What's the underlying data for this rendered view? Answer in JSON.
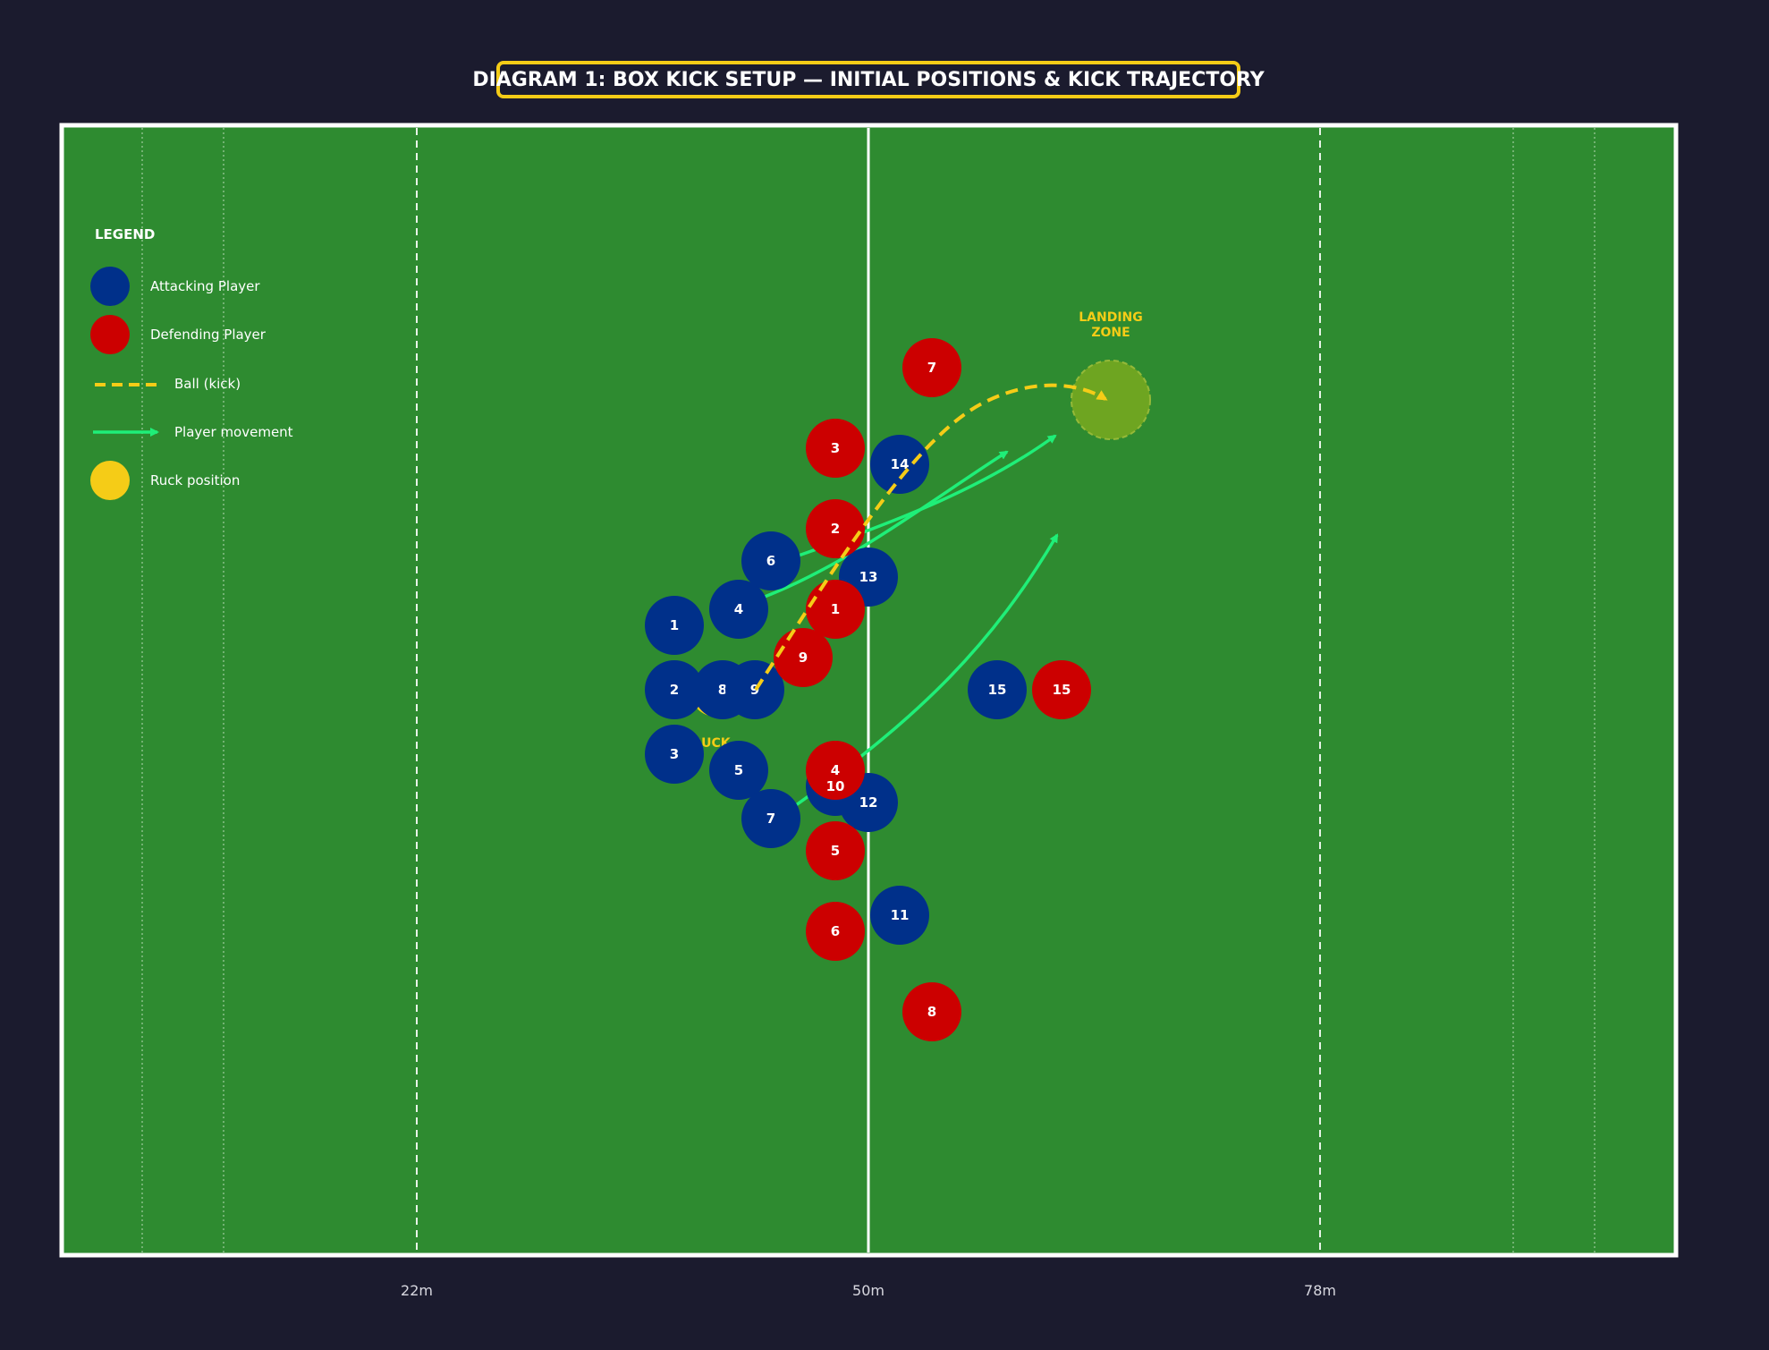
{
  "title": "DIAGRAM 1: BOX KICK SETUP — INITIAL POSITIONS & KICK TRAJECTORY",
  "colors": {
    "background": "#1b1b2e",
    "pitch": "#2e8b30",
    "attacking": "#00308a",
    "defending": "#cc0000",
    "ball": "#f5cc17",
    "movement": "#1fef78",
    "landing_zone": "#7aaa1f"
  },
  "legend": {
    "title": "LEGEND",
    "items": [
      {
        "label": "Attacking Player",
        "symbol": "attacking-circle"
      },
      {
        "label": "Defending Player",
        "symbol": "defending-circle"
      },
      {
        "label": "Ball (kick)",
        "symbol": "dashed-line"
      },
      {
        "label": "Player movement",
        "symbol": "arrow-line"
      },
      {
        "label": "Ruck position",
        "symbol": "ruck-circle"
      }
    ]
  },
  "field_markers": [
    "22m",
    "50m",
    "78m"
  ],
  "landing_zone": {
    "line1": "LANDING",
    "line2": "ZONE"
  },
  "ruck_label": "RUCK",
  "attacking_players": [
    {
      "number": "1"
    },
    {
      "number": "2"
    },
    {
      "number": "3"
    },
    {
      "number": "4"
    },
    {
      "number": "5"
    },
    {
      "number": "6"
    },
    {
      "number": "7"
    },
    {
      "number": "8"
    },
    {
      "number": "9"
    },
    {
      "number": "10"
    },
    {
      "number": "11"
    },
    {
      "number": "12"
    },
    {
      "number": "13"
    },
    {
      "number": "14"
    },
    {
      "number": "15"
    }
  ],
  "defending_players": [
    {
      "number": "1"
    },
    {
      "number": "2"
    },
    {
      "number": "3"
    },
    {
      "number": "4"
    },
    {
      "number": "5"
    },
    {
      "number": "6"
    },
    {
      "number": "7"
    },
    {
      "number": "8"
    },
    {
      "number": "9"
    },
    {
      "number": "15"
    }
  ]
}
